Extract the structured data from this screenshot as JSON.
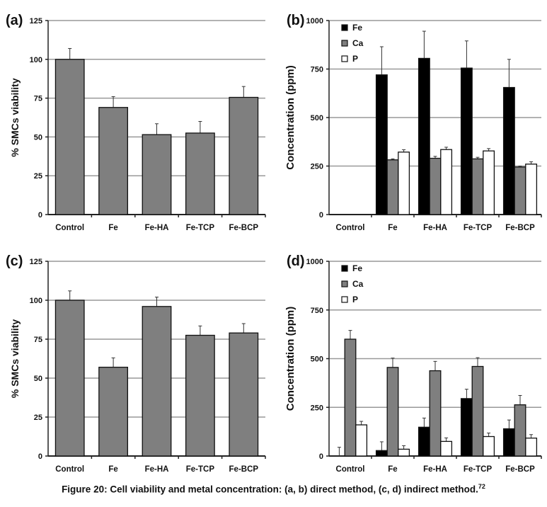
{
  "chart_data": [
    {
      "panel": "(a)",
      "type": "bar",
      "ylabel": "% SMCs viability",
      "ylim": [
        0,
        125
      ],
      "yticks": [
        0,
        25,
        50,
        75,
        100,
        125
      ],
      "grid": true,
      "categories": [
        "Control",
        "Fe",
        "Fe-HA",
        "Fe-TCP",
        "Fe-BCP"
      ],
      "series": [
        {
          "name": "viability",
          "color": "#7f7f7f",
          "values": [
            100,
            69,
            51.5,
            52.5,
            75.5
          ],
          "errors": [
            7,
            7,
            7,
            7.5,
            7
          ]
        }
      ]
    },
    {
      "panel": "(b)",
      "type": "bar",
      "ylabel": "Concentration (ppm)",
      "ylim": [
        0,
        1000
      ],
      "yticks": [
        0,
        250,
        500,
        750,
        1000
      ],
      "grid": true,
      "legend": "top-left",
      "categories": [
        "Control",
        "Fe",
        "Fe-HA",
        "Fe-TCP",
        "Fe-BCP"
      ],
      "series": [
        {
          "name": "Fe",
          "color": "#000000",
          "values": [
            0,
            720,
            805,
            755,
            655
          ],
          "errors": [
            0,
            145,
            140,
            140,
            145
          ]
        },
        {
          "name": "Ca",
          "color": "#7f7f7f",
          "values": [
            0,
            282,
            290,
            287,
            245
          ],
          "errors": [
            0,
            5,
            10,
            8,
            4
          ]
        },
        {
          "name": "P",
          "color": "#ffffff",
          "values": [
            0,
            322,
            335,
            328,
            260
          ],
          "errors": [
            0,
            12,
            12,
            12,
            12
          ]
        }
      ]
    },
    {
      "panel": "(c)",
      "type": "bar",
      "ylabel": "% SMCs viability",
      "ylim": [
        0,
        125
      ],
      "yticks": [
        0,
        25,
        50,
        75,
        100,
        125
      ],
      "grid": true,
      "categories": [
        "Control",
        "Fe",
        "Fe-HA",
        "Fe-TCP",
        "Fe-BCP"
      ],
      "series": [
        {
          "name": "viability",
          "color": "#7f7f7f",
          "values": [
            100,
            57,
            96,
            77.5,
            79
          ],
          "errors": [
            6,
            6,
            6,
            6,
            6
          ]
        }
      ]
    },
    {
      "panel": "(d)",
      "type": "bar",
      "ylabel": "Concentration (ppm)",
      "ylim": [
        0,
        1000
      ],
      "yticks": [
        0,
        250,
        500,
        750,
        1000
      ],
      "grid": true,
      "legend": "top-left",
      "categories": [
        "Control",
        "Fe",
        "Fe-HA",
        "Fe-TCP",
        "Fe-BCP"
      ],
      "series": [
        {
          "name": "Fe",
          "color": "#000000",
          "values": [
            0,
            28,
            148,
            295,
            140
          ],
          "errors": [
            45,
            45,
            47,
            48,
            45
          ]
        },
        {
          "name": "Ca",
          "color": "#7f7f7f",
          "values": [
            600,
            455,
            438,
            460,
            263
          ],
          "errors": [
            45,
            48,
            48,
            45,
            48
          ]
        },
        {
          "name": "P",
          "color": "#ffffff",
          "values": [
            160,
            35,
            75,
            100,
            92
          ],
          "errors": [
            18,
            18,
            18,
            18,
            18
          ]
        }
      ]
    }
  ],
  "caption": {
    "text": "Figure 20: Cell viability and metal concentration: (a, b) direct method, (c, d) indirect method.",
    "ref": "72"
  }
}
